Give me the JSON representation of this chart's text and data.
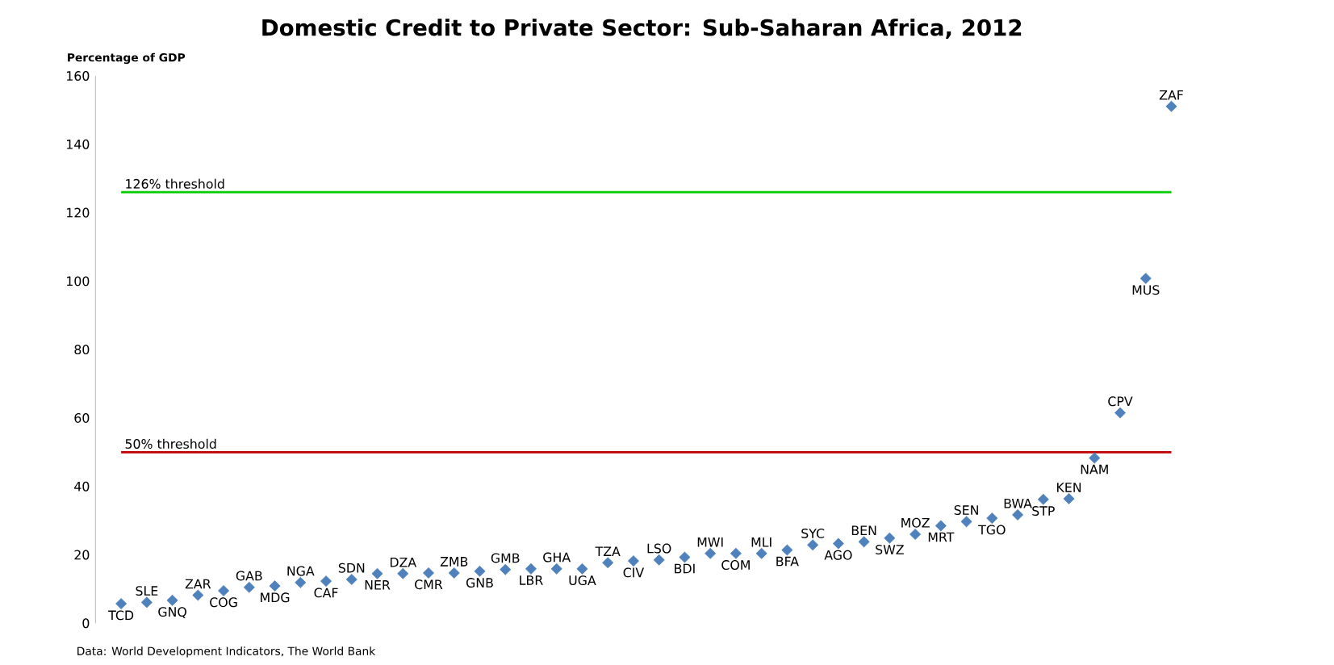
{
  "chart_data": {
    "type": "scatter",
    "title": "Domestic Credit to Private Sector: Sub-Saharan Africa, 2012",
    "ylabel": "Percentage of GDP",
    "categories": [
      "TCD",
      "SLE",
      "GNQ",
      "ZAR",
      "COG",
      "GAB",
      "MDG",
      "NGA",
      "CAF",
      "SDN",
      "NER",
      "DZA",
      "CMR",
      "ZMB",
      "GNB",
      "GMB",
      "LBR",
      "GHA",
      "UGA",
      "TZA",
      "CIV",
      "LSO",
      "BDI",
      "MWI",
      "COM",
      "MLI",
      "BFA",
      "SYC",
      "AGO",
      "BEN",
      "SWZ",
      "MOZ",
      "MRT",
      "SEN",
      "TGO",
      "BWA",
      "STP",
      "KEN",
      "NAM",
      "CPV",
      "MUS",
      "ZAF"
    ],
    "values": [
      5.7,
      6.1,
      6.7,
      8.2,
      9.5,
      10.5,
      10.9,
      11.9,
      12.3,
      12.8,
      14.5,
      14.5,
      14.7,
      14.7,
      15.2,
      15.7,
      15.9,
      15.9,
      15.9,
      17.7,
      18.2,
      18.5,
      19.3,
      20.4,
      20.4,
      20.4,
      21.4,
      22.9,
      23.3,
      23.8,
      24.9,
      26.0,
      28.5,
      29.7,
      30.7,
      31.7,
      36.2,
      36.4,
      48.3,
      61.5,
      100.8,
      151.1
    ],
    "color": "#4f81bd",
    "marker": "diamond",
    "tick_labels": "y",
    "ylim": [
      0,
      160
    ],
    "yticks": [
      0,
      20,
      40,
      60,
      80,
      100,
      120,
      140,
      160
    ],
    "ref_lines": [
      {
        "axis": "y",
        "value": 126,
        "label": "126% threshold",
        "color": "#00cc00"
      },
      {
        "axis": "y",
        "value": 50,
        "label": "50% threshold",
        "color": "#c00000"
      }
    ],
    "annotations": [
      "Data: World Development Indicators, The World Bank"
    ]
  }
}
